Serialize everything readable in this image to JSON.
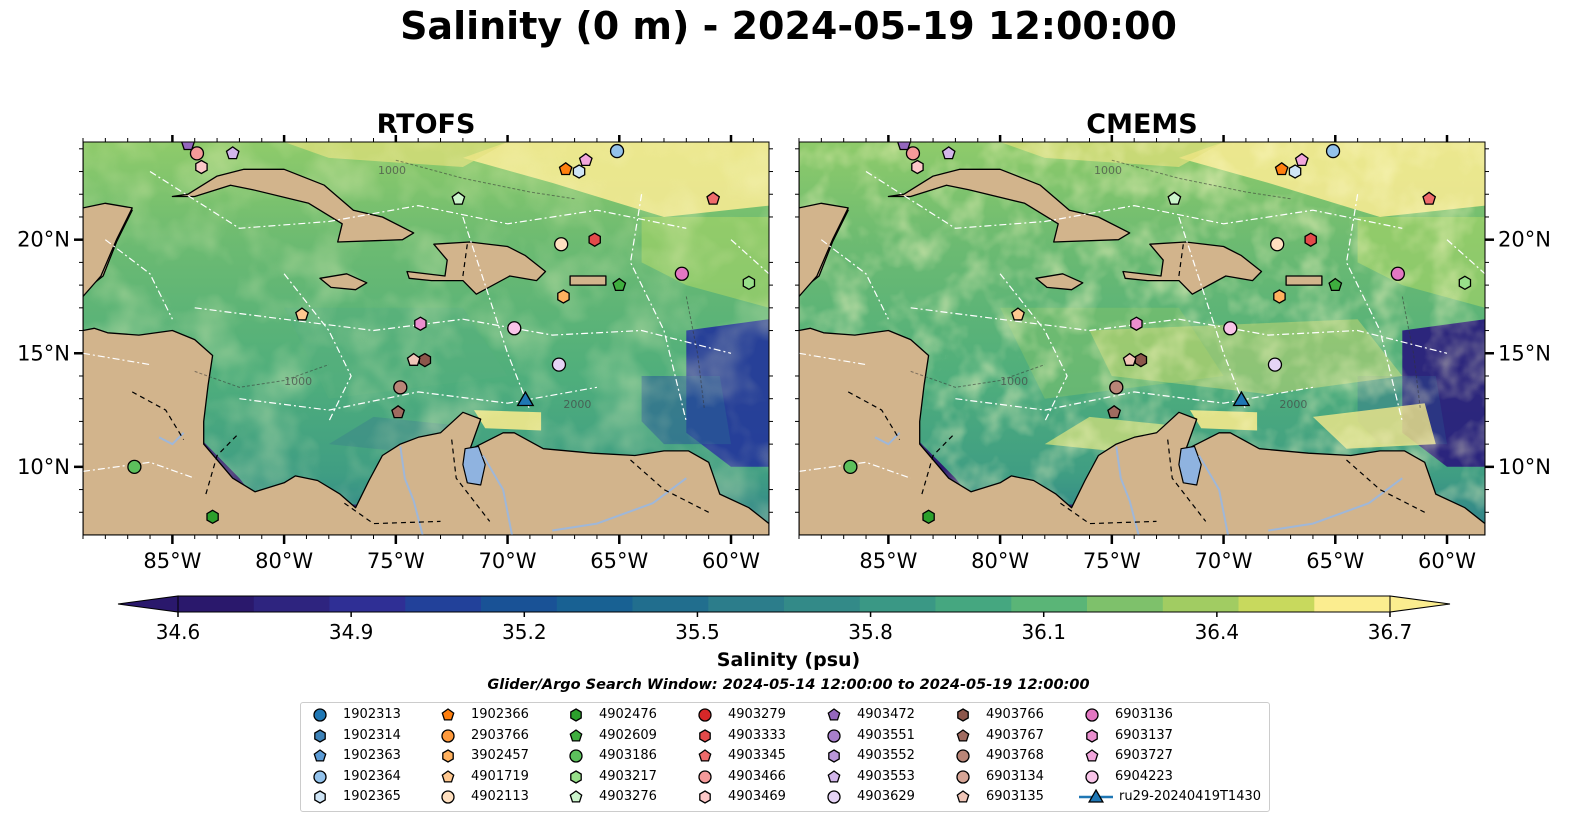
{
  "title": "Salinity (0 m) - 2024-05-19 12:00:00",
  "panels": [
    {
      "title": "RTOFS",
      "variant": "rtofs"
    },
    {
      "title": "CMEMS",
      "variant": "cmems"
    }
  ],
  "chart_data": {
    "type": "heatmap",
    "title": "Salinity (0 m) - 2024-05-19 12:00:00",
    "map_extent": {
      "lon": [
        -89.0,
        -58.3
      ],
      "lat": [
        7.0,
        24.3
      ]
    },
    "x_ticks": [
      "85°W",
      "80°W",
      "75°W",
      "70°W",
      "65°W",
      "60°W"
    ],
    "x_tick_values": [
      -85,
      -80,
      -75,
      -70,
      -65,
      -60
    ],
    "y_ticks": [
      "10°N",
      "15°N",
      "20°N"
    ],
    "y_tick_values": [
      10,
      15,
      20
    ],
    "colorbar": {
      "label": "Salinity (psu)",
      "min": 34.6,
      "max": 36.7,
      "ticks": [
        "34.6",
        "34.9",
        "35.2",
        "35.5",
        "35.8",
        "36.1",
        "36.4",
        "36.7"
      ],
      "tick_values": [
        34.6,
        34.9,
        35.2,
        35.5,
        35.8,
        36.1,
        36.4,
        36.7
      ],
      "colors": [
        "#2a186c",
        "#2e247f",
        "#2f2f95",
        "#22419a",
        "#195296",
        "#186193",
        "#216e8e",
        "#2c7d8b",
        "#338a88",
        "#3a9885",
        "#45a780",
        "#5ab577",
        "#7ec16b",
        "#a1cc62",
        "#c8d95d",
        "#fbed8f"
      ]
    },
    "contour_levels": [
      "1000",
      "2000"
    ],
    "search_window": "Glider/Argo Search Window: 2024-05-14 12:00:00 to 2024-05-19 12:00:00",
    "floats": [
      {
        "id": "1902313",
        "marker": "circle",
        "color": "#1f77b4"
      },
      {
        "id": "1902314",
        "marker": "hexagon",
        "color": "#3d82b8"
      },
      {
        "id": "1902363",
        "marker": "pentagon",
        "color": "#5b9bd5"
      },
      {
        "id": "1902364",
        "marker": "circle",
        "color": "#93c2eb",
        "lon": -65.1,
        "lat": 23.9
      },
      {
        "id": "1902365",
        "marker": "hexagon",
        "color": "#cfe5f6",
        "lon": -66.8,
        "lat": 23.0
      },
      {
        "id": "1902366",
        "marker": "pentagon",
        "color": "#ff7f0e",
        "lon": -67.4,
        "lat": 23.1
      },
      {
        "id": "2903766",
        "marker": "circle",
        "color": "#ff9a3c"
      },
      {
        "id": "3902457",
        "marker": "hexagon",
        "color": "#ffb15f",
        "lon": -67.5,
        "lat": 17.5
      },
      {
        "id": "4901719",
        "marker": "pentagon",
        "color": "#ffc890",
        "lon": -79.2,
        "lat": 16.7
      },
      {
        "id": "4902113",
        "marker": "circle",
        "color": "#ffe0c0",
        "lon": -67.6,
        "lat": 19.8
      },
      {
        "id": "4902476",
        "marker": "hexagon",
        "color": "#2ca02c",
        "lon": -83.2,
        "lat": 7.8
      },
      {
        "id": "4902609",
        "marker": "pentagon",
        "color": "#3fae3f",
        "lon": -65.0,
        "lat": 18.0
      },
      {
        "id": "4903186",
        "marker": "circle",
        "color": "#5cc05c",
        "lon": -86.7,
        "lat": 10.0
      },
      {
        "id": "4903217",
        "marker": "hexagon",
        "color": "#98df8a",
        "lon": -59.2,
        "lat": 18.1
      },
      {
        "id": "4903276",
        "marker": "pentagon",
        "color": "#ccf5cc",
        "lon": -72.2,
        "lat": 21.8
      },
      {
        "id": "4903279",
        "marker": "circle",
        "color": "#d62728"
      },
      {
        "id": "4903333",
        "marker": "hexagon",
        "color": "#e34a4a",
        "lon": -66.1,
        "lat": 20.0
      },
      {
        "id": "4903345",
        "marker": "pentagon",
        "color": "#ef6b6b",
        "lon": -60.8,
        "lat": 21.8
      },
      {
        "id": "4903466",
        "marker": "circle",
        "color": "#f59a9a",
        "lon": -83.9,
        "lat": 23.8
      },
      {
        "id": "4903469",
        "marker": "hexagon",
        "color": "#fcc8c8",
        "lon": -83.7,
        "lat": 23.2
      },
      {
        "id": "4903472",
        "marker": "pentagon",
        "color": "#9467bd",
        "lon": -84.3,
        "lat": 24.2
      },
      {
        "id": "4903551",
        "marker": "circle",
        "color": "#a77ecb"
      },
      {
        "id": "4903552",
        "marker": "hexagon",
        "color": "#bb97da"
      },
      {
        "id": "4903553",
        "marker": "pentagon",
        "color": "#d2b6ea",
        "lon": -82.3,
        "lat": 23.8
      },
      {
        "id": "4903629",
        "marker": "circle",
        "color": "#e5d4f5",
        "lon": -67.7,
        "lat": 14.5
      },
      {
        "id": "4903766",
        "marker": "hexagon",
        "color": "#8c564b",
        "lon": -73.7,
        "lat": 14.7
      },
      {
        "id": "4903767",
        "marker": "pentagon",
        "color": "#a06b60",
        "lon": -74.9,
        "lat": 12.4
      },
      {
        "id": "4903768",
        "marker": "circle",
        "color": "#b98577",
        "lon": -74.8,
        "lat": 13.5
      },
      {
        "id": "6903134",
        "marker": "circle",
        "color": "#d6a596"
      },
      {
        "id": "6903135",
        "marker": "pentagon",
        "color": "#f0c6b8",
        "lon": -74.2,
        "lat": 14.7
      },
      {
        "id": "6903136",
        "marker": "circle",
        "color": "#e377c2",
        "lon": -62.2,
        "lat": 18.5
      },
      {
        "id": "6903137",
        "marker": "hexagon",
        "color": "#ea8fcf",
        "lon": -73.9,
        "lat": 16.3
      },
      {
        "id": "6903727",
        "marker": "pentagon",
        "color": "#f2a6dc",
        "lon": -66.5,
        "lat": 23.5
      },
      {
        "id": "6904223",
        "marker": "circle",
        "color": "#f8c4e8",
        "lon": -69.7,
        "lat": 16.1
      },
      {
        "id": "ru29-20240419T1430",
        "marker": "triangle",
        "color": "#1f77b4",
        "lon": -69.2,
        "lat": 12.9
      }
    ]
  }
}
